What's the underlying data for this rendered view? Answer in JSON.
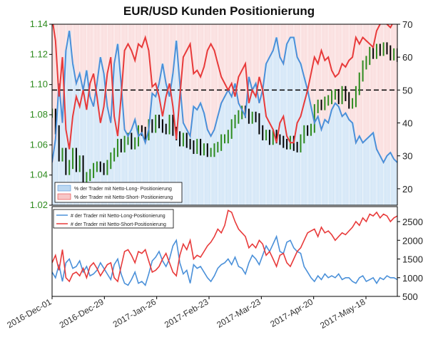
{
  "chart_data": {
    "type": "line",
    "title": "EUR/USD Kunden Positionierung",
    "date_labels": [
      "2016-Dec-01",
      "2016-Dec-29",
      "2017-Jan-26",
      "2017-Feb-23",
      "2017-Mar-23",
      "2017-Apr-20",
      "2017-May-18"
    ],
    "colors": {
      "long": "#4a90d9",
      "short": "#e83a3a",
      "price_up": "#2e8b1e",
      "price_down": "#000000",
      "long_fill": "#bcd8f2",
      "short_fill": "#f7c7c7",
      "left_axis": "#2e8b1e"
    },
    "top_panel": {
      "price_axis": {
        "ylim": [
          1.02,
          1.14
        ],
        "ticks": [
          "1.02",
          "1.04",
          "1.06",
          "1.08",
          "1.10",
          "1.12",
          "1.14"
        ]
      },
      "percent_axis": {
        "ylim": [
          15,
          70
        ],
        "ticks": [
          "20",
          "30",
          "40",
          "50",
          "60",
          "70"
        ]
      },
      "reference_line": 50,
      "legend": {
        "position": "lower-left",
        "entries": [
          "% der Trader mit Netto-Long- Positionierung",
          "% der Trader mit Netto-Short- Positionierung"
        ]
      },
      "price_series": [
        1.081,
        1.07,
        1.052,
        1.055,
        1.043,
        1.047,
        1.055,
        1.045,
        1.05,
        1.037,
        1.039,
        1.041,
        1.045,
        1.046,
        1.045,
        1.043,
        1.047,
        1.052,
        1.055,
        1.061,
        1.058,
        1.063,
        1.065,
        1.06,
        1.062,
        1.07,
        1.069,
        1.066,
        1.074,
        1.071,
        1.077,
        1.074,
        1.071,
        1.07,
        1.077,
        1.069,
        1.066,
        1.062,
        1.065,
        1.061,
        1.06,
        1.057,
        1.061,
        1.056,
        1.058,
        1.055,
        1.055,
        1.058,
        1.059,
        1.064,
        1.064,
        1.067,
        1.074,
        1.077,
        1.08,
        1.083,
        1.081,
        1.077,
        1.079,
        1.078,
        1.07,
        1.066,
        1.067,
        1.063,
        1.067,
        1.064,
        1.063,
        1.061,
        1.06,
        1.063,
        1.059,
        1.058,
        1.064,
        1.07,
        1.069,
        1.071,
        1.084,
        1.087,
        1.086,
        1.089,
        1.09,
        1.093,
        1.094,
        1.09,
        1.096,
        1.092,
        1.087,
        1.088,
        1.096,
        1.105,
        1.113,
        1.116,
        1.122,
        1.12,
        1.124,
        1.122,
        1.125,
        1.123,
        1.119,
        1.121,
        1.118
      ],
      "long_pct": [
        28,
        35,
        52,
        40,
        62,
        68,
        58,
        52,
        55,
        50,
        56,
        48,
        45,
        52,
        60,
        55,
        45,
        40,
        58,
        64,
        52,
        38,
        36,
        38,
        41,
        36,
        37,
        34,
        38,
        49,
        48,
        52,
        58,
        52,
        48,
        55,
        65,
        52,
        40,
        38,
        36,
        45,
        44,
        46,
        43,
        38,
        36,
        38,
        42,
        46,
        48,
        50,
        48,
        52,
        46,
        44,
        42,
        54,
        50,
        52,
        46,
        50,
        58,
        60,
        62,
        66,
        60,
        58,
        64,
        66,
        66,
        60,
        58,
        54,
        50,
        45,
        40,
        42,
        38,
        41,
        40,
        44,
        46,
        45,
        42,
        43,
        41,
        40,
        34,
        36,
        34,
        35,
        36,
        37,
        32,
        30,
        28,
        30,
        31,
        29,
        28
      ],
      "short_pct": [
        72,
        65,
        48,
        60,
        38,
        32,
        42,
        48,
        45,
        50,
        44,
        52,
        55,
        48,
        40,
        45,
        55,
        60,
        42,
        36,
        48,
        62,
        64,
        62,
        59,
        64,
        63,
        66,
        62,
        51,
        52,
        48,
        42,
        48,
        52,
        45,
        35,
        48,
        60,
        62,
        64,
        55,
        56,
        54,
        57,
        62,
        64,
        62,
        58,
        54,
        52,
        50,
        52,
        48,
        54,
        56,
        58,
        46,
        50,
        48,
        54,
        50,
        42,
        40,
        38,
        34,
        40,
        42,
        36,
        34,
        34,
        40,
        42,
        46,
        50,
        55,
        60,
        58,
        62,
        59,
        60,
        56,
        54,
        55,
        58,
        57,
        59,
        60,
        66,
        64,
        66,
        65,
        64,
        63,
        68,
        70,
        72,
        70,
        69,
        71,
        72
      ]
    },
    "bottom_panel": {
      "count_axis": {
        "ylim": [
          500,
          2900
        ],
        "ticks": [
          "500",
          "1000",
          "1500",
          "2000",
          "2500"
        ]
      },
      "legend": {
        "position": "top-left",
        "entries": [
          "# der Trader mit Netto-Long-Positionierung",
          "# der Trader mit Netto-Short-Positionierung"
        ]
      },
      "long_count": [
        1150,
        1000,
        1350,
        900,
        1400,
        1500,
        1250,
        1300,
        1450,
        1150,
        1300,
        1050,
        1100,
        1200,
        1400,
        1250,
        1100,
        950,
        1350,
        1500,
        1100,
        850,
        800,
        950,
        1150,
        850,
        900,
        800,
        1100,
        1450,
        1550,
        1700,
        1450,
        1300,
        1500,
        1850,
        2000,
        1400,
        1100,
        1200,
        850,
        1350,
        1250,
        1300,
        1150,
        1000,
        900,
        1050,
        1250,
        1350,
        1400,
        1500,
        1350,
        1550,
        1300,
        1250,
        1100,
        1400,
        1600,
        1500,
        1350,
        1600,
        1850,
        1700,
        1900,
        2100,
        1700,
        1650,
        1950,
        2000,
        1800,
        1700,
        1650,
        1300,
        1150,
        1000,
        900,
        1050,
        950,
        1100,
        1000,
        1050,
        1000,
        1100,
        950,
        1000,
        1000,
        900,
        850,
        1000,
        1050,
        900,
        950,
        1000,
        850,
        1000,
        950,
        1050,
        1000,
        1000,
        950
      ],
      "short_count": [
        1400,
        1600,
        1200,
        1750,
        1000,
        900,
        1100,
        1150,
        1050,
        1250,
        1000,
        1300,
        1400,
        1250,
        1050,
        1200,
        1350,
        1400,
        1000,
        900,
        1300,
        1700,
        1750,
        1600,
        1400,
        1700,
        1650,
        1750,
        1450,
        1150,
        1200,
        1300,
        1500,
        1650,
        1400,
        1150,
        1050,
        1600,
        1900,
        1750,
        2000,
        1500,
        1600,
        1550,
        1700,
        1850,
        1950,
        2100,
        2300,
        2200,
        2400,
        2800,
        2750,
        2500,
        2300,
        2200,
        2100,
        1800,
        1900,
        1800,
        2000,
        1900,
        1600,
        1700,
        1500,
        1300,
        1600,
        1650,
        1400,
        1300,
        1500,
        1700,
        1800,
        2000,
        2200,
        2250,
        2300,
        2100,
        2350,
        2200,
        2250,
        2150,
        2000,
        2100,
        2200,
        2150,
        2250,
        2350,
        2500,
        2400,
        2600,
        2500,
        2700,
        2650,
        2750,
        2600,
        2700,
        2650,
        2500,
        2600,
        2650
      ]
    }
  }
}
